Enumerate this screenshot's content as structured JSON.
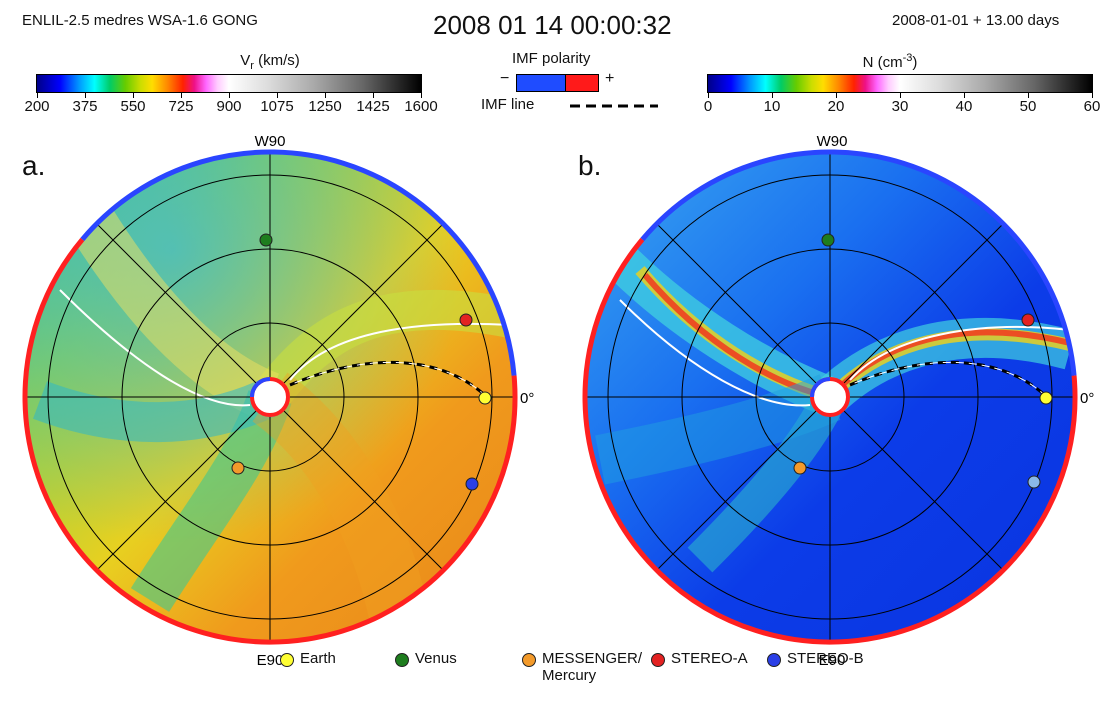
{
  "header": {
    "model": "ENLIL-2.5 medres WSA-1.6 GONG",
    "timestamp": "2008 01 14 00:00:32",
    "elapsed": "2008-01-01 + 13.00 days"
  },
  "colorbars": {
    "vr": {
      "title_base": "V",
      "title_sub": "r",
      "title_unit": " (km/s)",
      "ticks": [
        "200",
        "375",
        "550",
        "725",
        "900",
        "1075",
        "1250",
        "1425",
        "1600"
      ]
    },
    "density": {
      "title_base": "N (cm",
      "title_sup": "-3",
      "title_end": ")",
      "ticks": [
        "0",
        "10",
        "20",
        "30",
        "40",
        "50",
        "60"
      ]
    },
    "imf_polarity": {
      "title": "IMF polarity",
      "minus": "−",
      "plus": "+",
      "negative_color": "#1f4cff",
      "positive_color": "#ff1a1a"
    },
    "imf_line": {
      "label": "IMF line"
    }
  },
  "panels": {
    "a": {
      "label": "a."
    },
    "b": {
      "label": "b."
    },
    "top_label": "W90",
    "bottom_label": "E90",
    "right_label": "0°"
  },
  "legend": [
    {
      "label": "Earth",
      "color": "#ffff33"
    },
    {
      "label": "Venus",
      "color": "#1e7d1e"
    },
    {
      "label": "MESSENGER/",
      "label2": "Mercury",
      "color": "#f39a2a"
    },
    {
      "label": "STEREO-A",
      "color": "#e32222"
    },
    {
      "label": "STEREO-B",
      "color": "#2a3fe6"
    }
  ],
  "colors": {
    "outline_positive": "#ff2020",
    "outline_negative": "#2a45ff",
    "grid": "#000000"
  }
}
